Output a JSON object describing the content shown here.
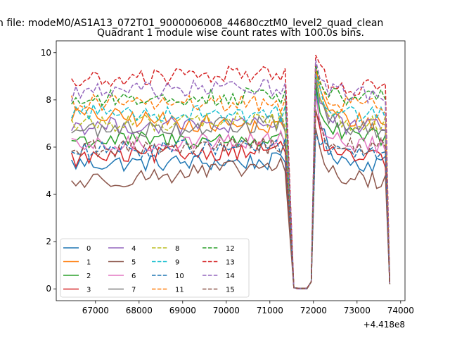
{
  "figure": {
    "suptitle": "n file: modeM0/AS1A13_072T01_9000006008_44680cztM0_level2_quad_clean",
    "title": "Quadrant 1 module wise count rates with 100.0s bins.",
    "x_offset_label": "+4.418e8"
  },
  "chart_data": {
    "type": "line",
    "title": "Quadrant 1 module wise count rates with 100.0s bins.",
    "xlabel": "",
    "ylabel": "",
    "x_offset": 441800000,
    "x_range": [
      66100,
      74100
    ],
    "y_range": [
      -0.5,
      10.5
    ],
    "xticks": [
      67000,
      68000,
      69000,
      70000,
      71000,
      72000,
      73000,
      74000
    ],
    "xtick_labels": [
      "67000",
      "68000",
      "69000",
      "70000",
      "71000",
      "72000",
      "73000",
      "74000"
    ],
    "yticks": [
      0,
      2,
      4,
      6,
      8,
      10
    ],
    "ytick_labels": [
      "0",
      "2",
      "4",
      "6",
      "8",
      "10"
    ],
    "grid": false,
    "legend_placement": "lower left",
    "x_start": 66450,
    "x_step": 100,
    "series": [
      {
        "name": "0",
        "color": "#1f77b4",
        "dash": "solid",
        "base": 5.3,
        "drop": 5.4,
        "peak": 8.6,
        "late": 5.3
      },
      {
        "name": "1",
        "color": "#ff7f0e",
        "dash": "solid",
        "base": 7.4,
        "drop": 6.7,
        "peak": 9.4,
        "late": 7.1
      },
      {
        "name": "2",
        "color": "#2ca02c",
        "dash": "solid",
        "base": 6.3,
        "drop": 6.3,
        "peak": 8.8,
        "late": 6.4
      },
      {
        "name": "3",
        "color": "#d62728",
        "dash": "solid",
        "base": 5.5,
        "drop": 6.0,
        "peak": 7.6,
        "late": 5.5
      },
      {
        "name": "4",
        "color": "#9467bd",
        "dash": "solid",
        "base": 6.9,
        "drop": 6.9,
        "peak": 9.2,
        "late": 6.8
      },
      {
        "name": "5",
        "color": "#8c564b",
        "dash": "solid",
        "base": 4.5,
        "drop": 5.3,
        "peak": 6.8,
        "late": 4.6
      },
      {
        "name": "6",
        "color": "#e377c2",
        "dash": "solid",
        "base": 6.0,
        "drop": 6.4,
        "peak": 8.2,
        "late": 6.1
      },
      {
        "name": "7",
        "color": "#7f7f7f",
        "dash": "solid",
        "base": 6.7,
        "drop": 7.0,
        "peak": 8.9,
        "late": 6.7
      },
      {
        "name": "8",
        "color": "#bcbd22",
        "dash": "dashed",
        "base": 7.0,
        "drop": 7.2,
        "peak": 9.3,
        "late": 7.0
      },
      {
        "name": "9",
        "color": "#17becf",
        "dash": "dashed",
        "base": 7.5,
        "drop": 7.4,
        "peak": 9.1,
        "late": 7.4
      },
      {
        "name": "10",
        "color": "#1f77b4",
        "dash": "dashed",
        "base": 5.8,
        "drop": 6.1,
        "peak": 6.6,
        "late": 5.7
      },
      {
        "name": "11",
        "color": "#ff7f0e",
        "dash": "dashed",
        "base": 7.9,
        "drop": 7.8,
        "peak": 9.2,
        "late": 7.8
      },
      {
        "name": "12",
        "color": "#2ca02c",
        "dash": "dashed",
        "base": 8.0,
        "drop": 8.2,
        "peak": 9.5,
        "late": 8.1
      },
      {
        "name": "13",
        "color": "#d62728",
        "dash": "dashed",
        "base": 8.8,
        "drop": 9.2,
        "peak": 9.9,
        "late": 8.5
      },
      {
        "name": "14",
        "color": "#9467bd",
        "dash": "dashed",
        "base": 8.3,
        "drop": 8.6,
        "peak": 9.7,
        "late": 8.2
      },
      {
        "name": "15",
        "color": "#8c564b",
        "dash": "dashed",
        "base": 5.9,
        "drop": 6.1,
        "peak": 7.5,
        "late": 6.0
      }
    ]
  }
}
